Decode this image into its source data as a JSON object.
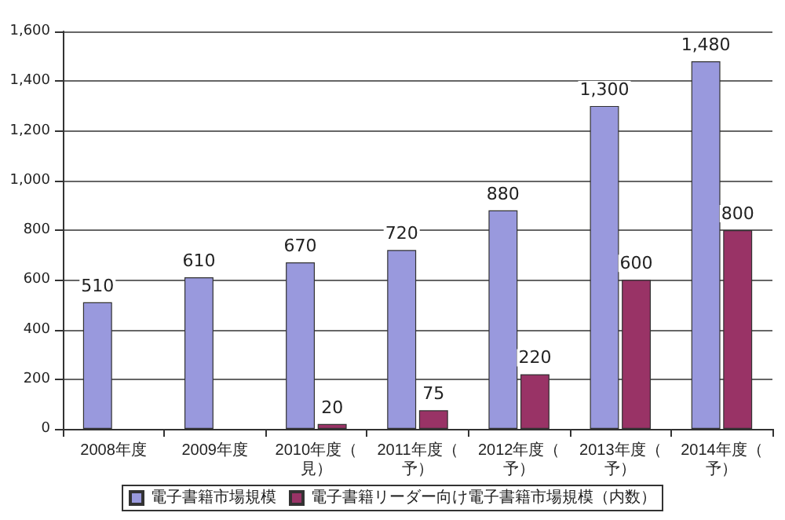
{
  "chart_data": {
    "type": "bar",
    "categories": [
      "2008年度",
      "2009年度",
      "2010年度（見）",
      "2011年度（予）",
      "2012年度（予）",
      "2013年度（予）",
      "2014年度（予）"
    ],
    "series": [
      {
        "name": "電子書籍市場規模",
        "color": "#9999dd",
        "values": [
          510,
          610,
          670,
          720,
          880,
          1300,
          1480
        ],
        "value_labels": [
          "510",
          "610",
          "670",
          "720",
          "880",
          "1,300",
          "1,480"
        ]
      },
      {
        "name": "電子書籍リーダー向け電子書籍市場規模（内数）",
        "color": "#993366",
        "values": [
          null,
          null,
          20,
          75,
          220,
          600,
          800
        ],
        "value_labels": [
          null,
          null,
          "20",
          "75",
          "220",
          "600",
          "800"
        ]
      }
    ],
    "ylim": [
      0,
      1600
    ],
    "yticks": [
      {
        "value": 0,
        "label": "0"
      },
      {
        "value": 200,
        "label": "200"
      },
      {
        "value": 400,
        "label": "400"
      },
      {
        "value": 600,
        "label": "600"
      },
      {
        "value": 800,
        "label": "800"
      },
      {
        "value": 1000,
        "label": "1,000"
      },
      {
        "value": 1200,
        "label": "1,200"
      },
      {
        "value": 1400,
        "label": "1,400"
      },
      {
        "value": 1600,
        "label": "1,600"
      }
    ],
    "grid": "y",
    "legend": "bottom"
  }
}
